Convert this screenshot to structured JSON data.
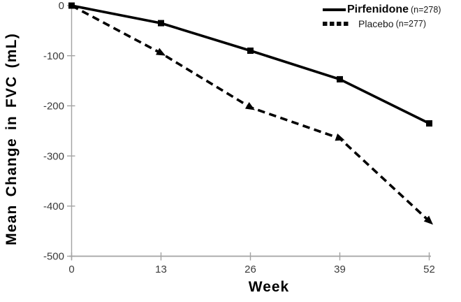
{
  "chart_data": {
    "type": "line",
    "x": [
      0,
      13,
      26,
      39,
      52
    ],
    "xticks": [
      0,
      13,
      26,
      39,
      52
    ],
    "yticks": [
      0,
      -100,
      -200,
      -300,
      -400,
      -500
    ],
    "xlim": [
      0,
      52
    ],
    "ylim": [
      -500,
      0
    ],
    "xlabel": "Week",
    "ylabel": "Mean Change in FVC (mL)",
    "grid": false,
    "legend_position": "top-right",
    "series": [
      {
        "name": "Pirfenidone",
        "n_label": "(n=278)",
        "values": [
          0,
          -35,
          -90,
          -147,
          -235
        ],
        "line_style": "solid",
        "marker": "square",
        "color": "#000000"
      },
      {
        "name": "Placebo",
        "n_label": "(n=277)",
        "values": [
          0,
          -95,
          -203,
          -265,
          -430
        ],
        "line_style": "dashed",
        "marker": "triangle-right",
        "color": "#000000"
      }
    ],
    "colors": {
      "axis": "#a3a3a3",
      "tick_label": "#3b3b3b",
      "series": "#000000",
      "background": "#ffffff"
    }
  }
}
